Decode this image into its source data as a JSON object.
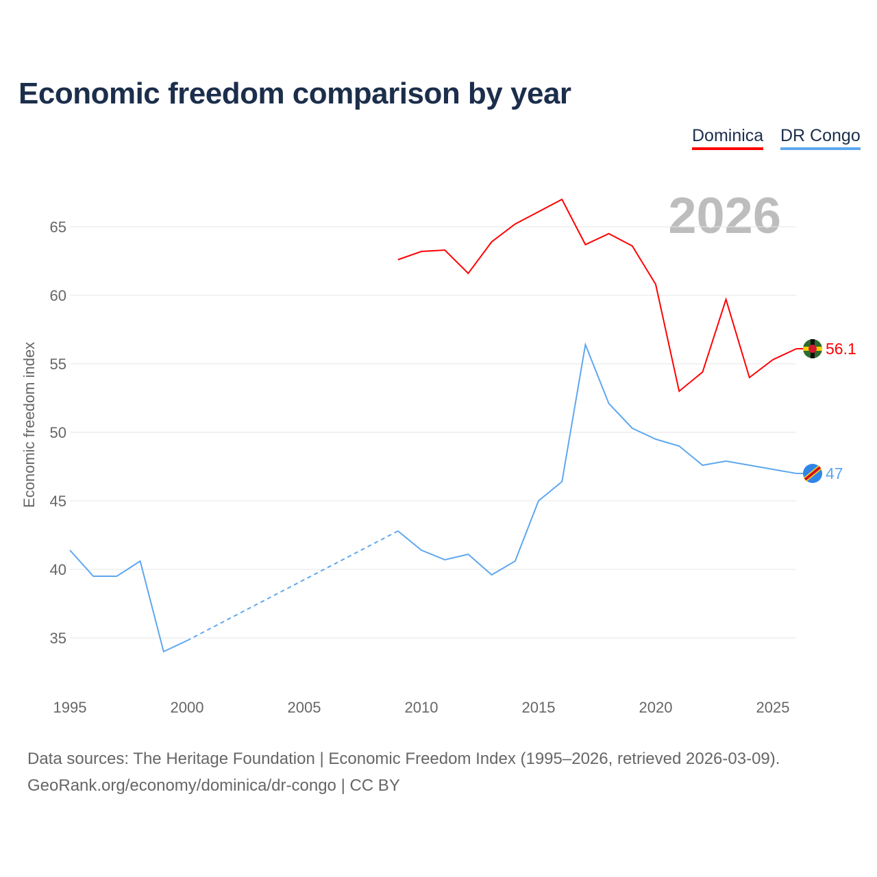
{
  "title": "Economic freedom comparison by year",
  "legend": [
    {
      "label": "Dominica",
      "color": "#ff0000"
    },
    {
      "label": "DR Congo",
      "color": "#5ea7ef"
    }
  ],
  "year_watermark": "2026",
  "footer": {
    "line1": "Data sources: The Heritage Foundation | Economic Freedom Index (1995–2026, retrieved 2026-03-09).",
    "line2": "GeoRank.org/economy/dominica/dr-congo | CC BY"
  },
  "chart_data": {
    "type": "line",
    "title": "Economic freedom comparison by year",
    "xlabel": "",
    "ylabel": "Economic freedom index",
    "xlim": [
      1995,
      2026
    ],
    "ylim": [
      31.5,
      68
    ],
    "xticks": [
      1995,
      2000,
      2005,
      2010,
      2015,
      2020,
      2025
    ],
    "yticks": [
      35,
      40,
      45,
      50,
      55,
      60,
      65
    ],
    "grid": true,
    "legend_position": "top-right",
    "series": [
      {
        "name": "Dominica",
        "color": "#ff0000",
        "end_label": "56.1",
        "x": [
          2009,
          2010,
          2011,
          2012,
          2013,
          2014,
          2015,
          2016,
          2017,
          2018,
          2019,
          2020,
          2021,
          2022,
          2023,
          2024,
          2025,
          2026
        ],
        "values": [
          62.6,
          63.2,
          63.3,
          61.6,
          63.9,
          65.2,
          66.1,
          67.0,
          63.7,
          64.5,
          63.6,
          60.8,
          53.0,
          54.4,
          59.7,
          54.0,
          55.3,
          56.1
        ]
      },
      {
        "name": "DR Congo",
        "color": "#5ea7ef",
        "end_label": "47",
        "x": [
          1995,
          1996,
          1997,
          1998,
          1999,
          2000,
          2001,
          2002,
          2003,
          2004,
          2005,
          2006,
          2007,
          2008,
          2009,
          2010,
          2011,
          2012,
          2013,
          2014,
          2015,
          2016,
          2017,
          2018,
          2019,
          2020,
          2021,
          2022,
          2023,
          2024,
          2025,
          2026
        ],
        "values": [
          41.4,
          39.5,
          39.5,
          40.6,
          34.0,
          34.8,
          null,
          null,
          null,
          null,
          null,
          null,
          null,
          null,
          42.8,
          41.4,
          40.7,
          41.1,
          39.6,
          40.6,
          45.0,
          46.4,
          56.4,
          52.1,
          50.3,
          49.5,
          49.0,
          47.6,
          47.9,
          47.6,
          47.3,
          47.0
        ]
      }
    ]
  }
}
